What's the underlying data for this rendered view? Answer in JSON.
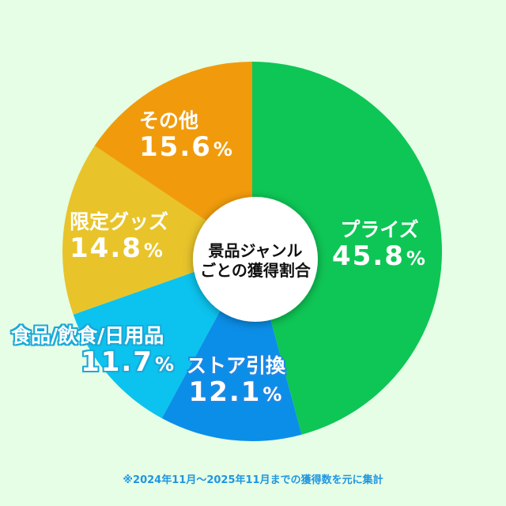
{
  "chart_data": {
    "type": "pie",
    "style": "donut-with-center-label",
    "title": "景品ジャンルごとの獲得割合",
    "start_angle": "12 o'clock, clockwise",
    "categories": [
      "プライズ",
      "ストア引換",
      "食品/飲食/日用品",
      "限定グッズ",
      "その他"
    ],
    "values": [
      45.8,
      12.1,
      11.7,
      14.8,
      15.6
    ],
    "unit": "%",
    "colors": [
      "#0ec655",
      "#0b8ee8",
      "#0bc3ee",
      "#e8c42a",
      "#f19b0c"
    ],
    "labels_display": [
      "45.8%",
      "12.1%",
      "11.7%",
      "14.8%",
      "15.6%"
    ],
    "footnote": "※2024年11月〜2025年11月までの獲得数を元に集計",
    "legend": "none (labels placed on slices)"
  },
  "center": {
    "line1": "景品ジャンル",
    "line2": "ごとの獲得割合"
  },
  "labels": [
    {
      "name": "プライズ",
      "pct": "45.8",
      "sign": "%"
    },
    {
      "name": "ストア引換",
      "pct": "12.1",
      "sign": "%"
    },
    {
      "name": "食品/飲食/日用品",
      "pct": "11.7",
      "sign": "%"
    },
    {
      "name": "限定グッズ",
      "pct": "14.8",
      "sign": "%"
    },
    {
      "name": "その他",
      "pct": "15.6",
      "sign": "%"
    }
  ],
  "footnote": "※2024年11月〜2025年11月までの獲得数を元に集計",
  "background": "#e6fde6"
}
